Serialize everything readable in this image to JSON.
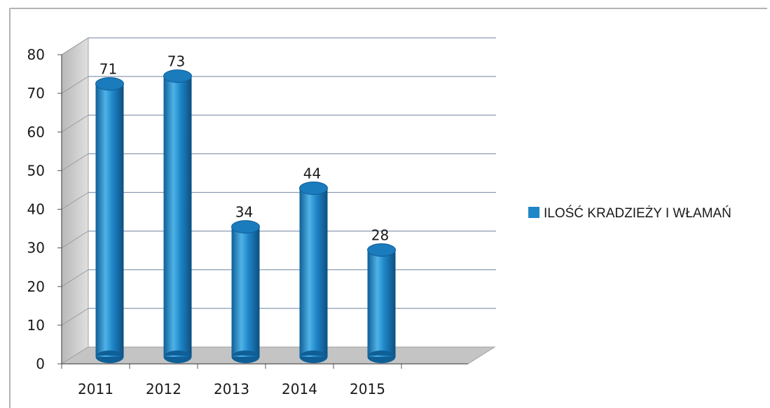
{
  "chart_data": {
    "type": "bar",
    "categories": [
      "2011",
      "2012",
      "2013",
      "2014",
      "2015"
    ],
    "series": [
      {
        "name": "ILOŚĆ KRADZIEŻY I WŁAMAŃ",
        "values": [
          71,
          73,
          34,
          44,
          28
        ]
      }
    ],
    "ylim": [
      0,
      80
    ],
    "yticks": [
      "0",
      "10",
      "20",
      "30",
      "40",
      "50",
      "60",
      "70",
      "80"
    ],
    "grid": true,
    "bar_style": "3d-cylinder",
    "legend_position": "right",
    "colors": {
      "bar": "#1f86c8",
      "bar_light": "#4fb3e8",
      "bar_dark": "#0f5f96",
      "wall": "#d9d9d9",
      "floor": "#c4c4c4",
      "grid": "#8a9bb0",
      "axis": "#555555"
    }
  }
}
